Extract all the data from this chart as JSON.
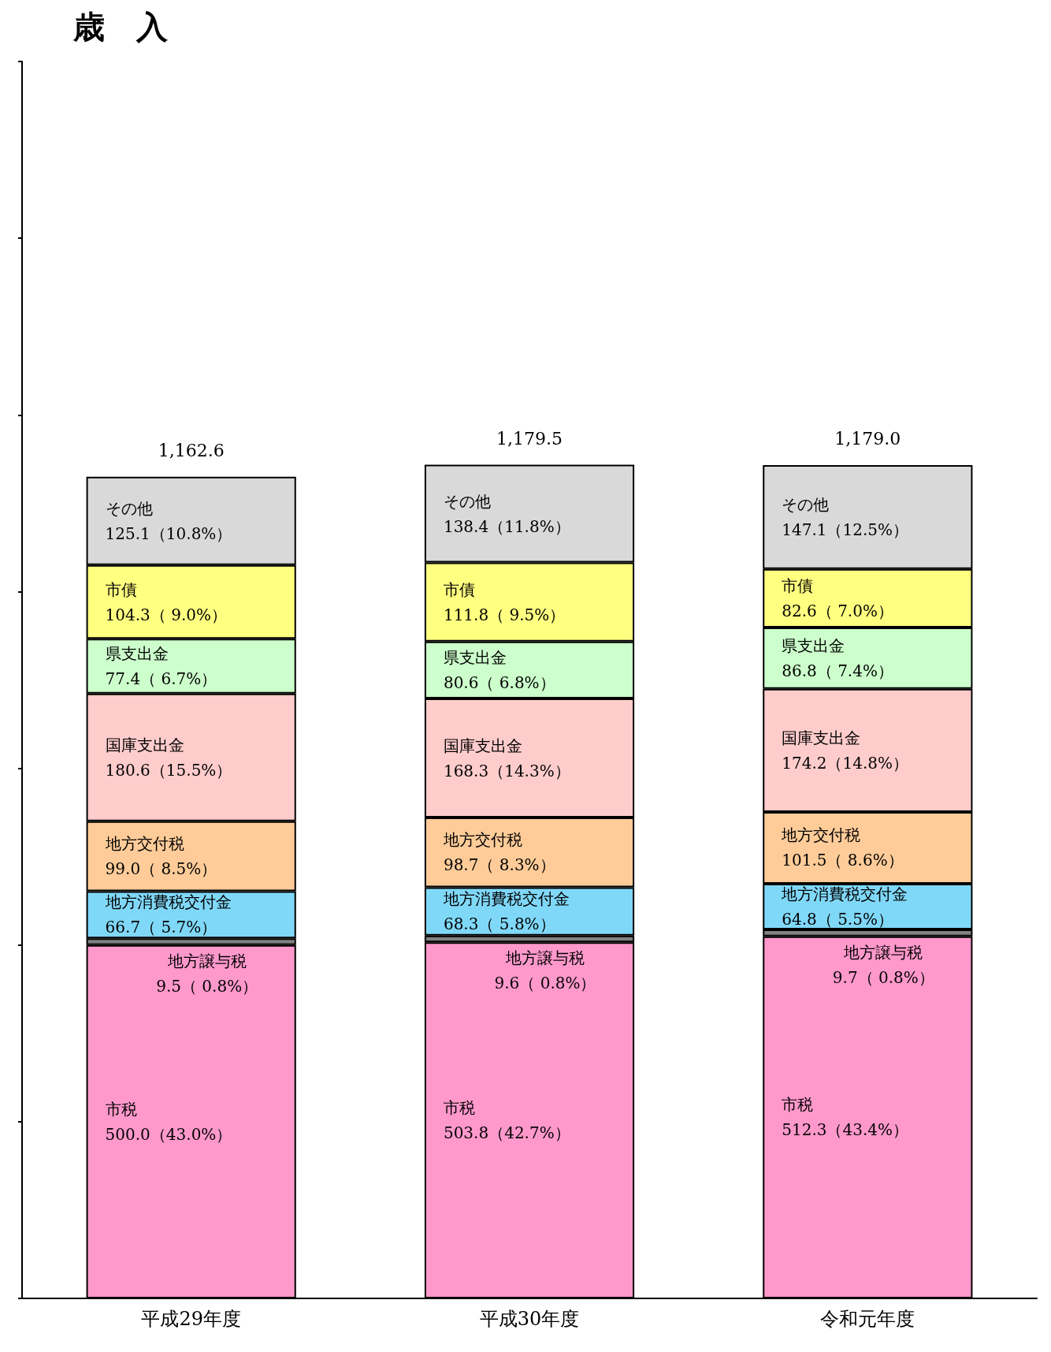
{
  "chart_data": {
    "type": "bar",
    "title": "歳　入",
    "stacked": true,
    "data_labels": false,
    "tick_labels": "x",
    "grid": false,
    "legend": false,
    "categories": [
      "平成29年度",
      "平成30年度",
      "令和元年度"
    ],
    "ylim": [
      0,
      1750
    ],
    "yticks": [
      {
        "value": 0,
        "label": null
      },
      {
        "value": 250,
        "label": null
      },
      {
        "value": 500,
        "label": null
      },
      {
        "value": 750,
        "label": null
      },
      {
        "value": 1000,
        "label": null
      },
      {
        "value": 1250,
        "label": null
      },
      {
        "value": 1500,
        "label": null
      },
      {
        "value": 1750,
        "label": null
      }
    ],
    "totals": [
      "1,162.6",
      "1,179.5",
      "1,179.0"
    ],
    "series": [
      {
        "name": "市税",
        "color": "#ff99cc",
        "values": [
          500.0,
          503.8,
          512.3
        ],
        "value_labels": [
          "500.0（43.0%）",
          "503.8（42.7%）",
          "512.3（43.4%）"
        ]
      },
      {
        "name": "地方譲与税",
        "color": "#808080",
        "values": [
          9.5,
          9.6,
          9.7
        ],
        "value_labels": [
          "9.5（ 0.8%）",
          "9.6（ 0.8%）",
          "9.7（ 0.8%）"
        ]
      },
      {
        "name": "地方消費税交付金",
        "color": "#80d8f8",
        "values": [
          66.7,
          68.3,
          64.8
        ],
        "value_labels": [
          "66.7（ 5.7%）",
          "68.3（ 5.8%）",
          "64.8（ 5.5%）"
        ]
      },
      {
        "name": "地方交付税",
        "color": "#ffcc99",
        "values": [
          99.0,
          98.7,
          101.5
        ],
        "value_labels": [
          "99.0（ 8.5%）",
          "98.7（ 8.3%）",
          "101.5（ 8.6%）"
        ]
      },
      {
        "name": "国庫支出金",
        "color": "#ffcccc",
        "values": [
          180.6,
          168.3,
          174.2
        ],
        "value_labels": [
          "180.6（15.5%）",
          "168.3（14.3%）",
          "174.2（14.8%）"
        ]
      },
      {
        "name": "県支出金",
        "color": "#ccffcc",
        "values": [
          77.4,
          80.6,
          86.8
        ],
        "value_labels": [
          "77.4（ 6.7%）",
          "80.6（ 6.8%）",
          "86.8（ 7.4%）"
        ]
      },
      {
        "name": "市債",
        "color": "#ffff80",
        "values": [
          104.3,
          111.8,
          82.6
        ],
        "value_labels": [
          "104.3（ 9.0%）",
          "111.8（ 9.5%）",
          "82.6（ 7.0%）"
        ]
      },
      {
        "name": "その他",
        "color": "#d9d9d9",
        "values": [
          125.1,
          138.4,
          147.1
        ],
        "value_labels": [
          "125.1（10.8%）",
          "138.4（11.8%）",
          "147.1（12.5%）"
        ]
      }
    ]
  }
}
